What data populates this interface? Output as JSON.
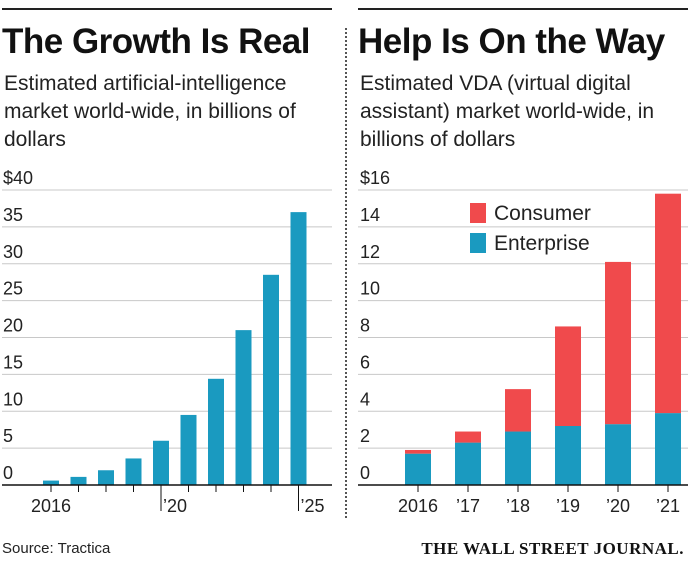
{
  "chart_data": [
    {
      "type": "bar",
      "title": "The Growth Is Real",
      "subtitle": "Estimated artificial-intelligence market world-wide, in billions of dollars",
      "categories": [
        "2016",
        "2017",
        "2018",
        "2019",
        "2020",
        "2021",
        "2022",
        "2023",
        "2024",
        "2025"
      ],
      "x_tick_labels": [
        "2016",
        "",
        "",
        "",
        "’20",
        "",
        "",
        "",
        "",
        "’25"
      ],
      "values": [
        0.6,
        1.1,
        2.0,
        3.6,
        6.0,
        9.5,
        14.4,
        21.0,
        28.5,
        37.0
      ],
      "ylim": [
        0,
        40
      ],
      "y_tick_labels": [
        "0",
        "5",
        "10",
        "15",
        "20",
        "25",
        "30",
        "35",
        "$40"
      ],
      "color": "#1a9ac0"
    },
    {
      "type": "bar",
      "stacked": true,
      "title": "Help Is On the Way",
      "subtitle": "Estimated VDA (virtual digital assistant) market world-wide, in billions of dollars",
      "categories": [
        "2016",
        "2017",
        "2018",
        "2019",
        "2020",
        "2021"
      ],
      "x_tick_labels": [
        "2016",
        "’17",
        "’18",
        "’19",
        "’20",
        "’21"
      ],
      "series": [
        {
          "name": "Enterprise",
          "color": "#1a9ac0",
          "values": [
            1.7,
            2.3,
            2.9,
            3.2,
            3.3,
            3.9
          ]
        },
        {
          "name": "Consumer",
          "color": "#f04a4c",
          "values": [
            0.2,
            0.6,
            2.3,
            5.4,
            8.8,
            11.9
          ]
        }
      ],
      "legend_order": [
        "Consumer",
        "Enterprise"
      ],
      "legend_position": "top-left",
      "ylim": [
        0,
        16
      ],
      "y_tick_labels": [
        "0",
        "2",
        "4",
        "6",
        "8",
        "10",
        "12",
        "14",
        "$16"
      ]
    }
  ],
  "footer": {
    "source": "Source: Tractica",
    "publisher": "THE WALL STREET JOURNAL."
  }
}
